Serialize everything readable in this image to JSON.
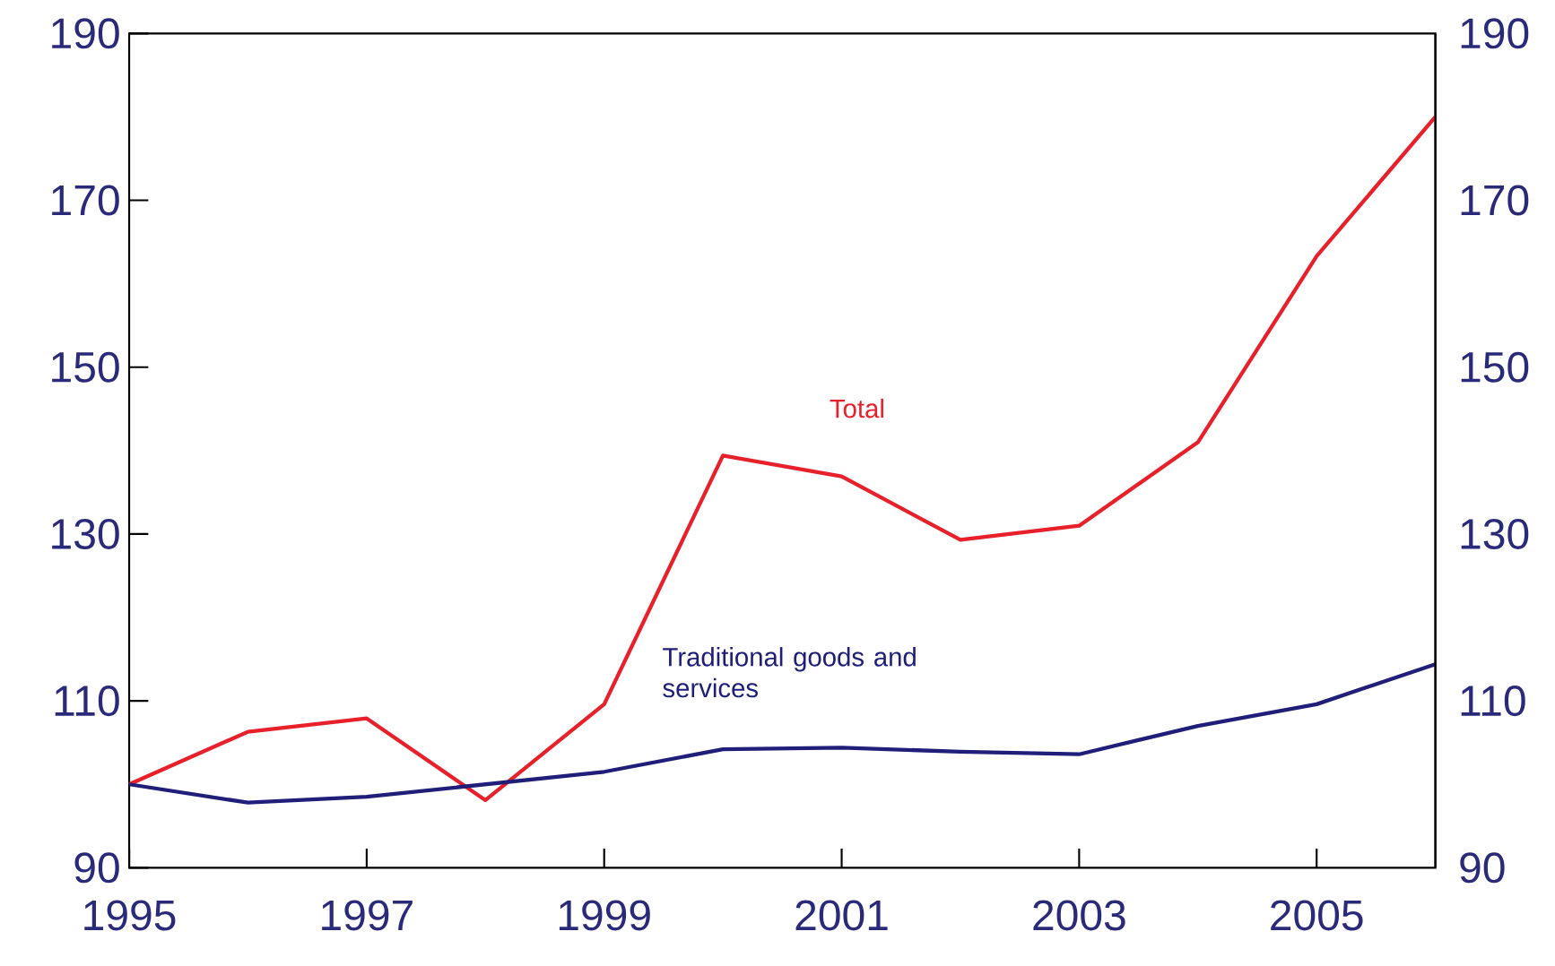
{
  "chart_data": {
    "type": "line",
    "x": [
      1995,
      1996,
      1997,
      1998,
      1999,
      2000,
      2001,
      2002,
      2003,
      2004,
      2005,
      2006
    ],
    "series": [
      {
        "name": "Total",
        "color": "#e8202a",
        "values": [
          100,
          106.3,
          107.9,
          98.1,
          109.6,
          139.4,
          136.9,
          129.3,
          131.0,
          141.0,
          163.3,
          180.0
        ]
      },
      {
        "name": "Traditional goods and services",
        "color": "#1f1f7a",
        "values": [
          100,
          97.8,
          98.5,
          100.0,
          101.5,
          104.2,
          104.4,
          103.9,
          103.6,
          107.0,
          109.6,
          114.4
        ]
      }
    ],
    "xlim": [
      1995,
      2006
    ],
    "xticks": [
      1995,
      1997,
      1999,
      2001,
      2003,
      2005
    ],
    "ylim": [
      90,
      190
    ],
    "yticks": [
      90,
      110,
      130,
      150,
      170,
      190
    ],
    "y2lim": [
      90,
      190
    ],
    "y2ticks": [
      90,
      110,
      130,
      150,
      170,
      190
    ]
  }
}
